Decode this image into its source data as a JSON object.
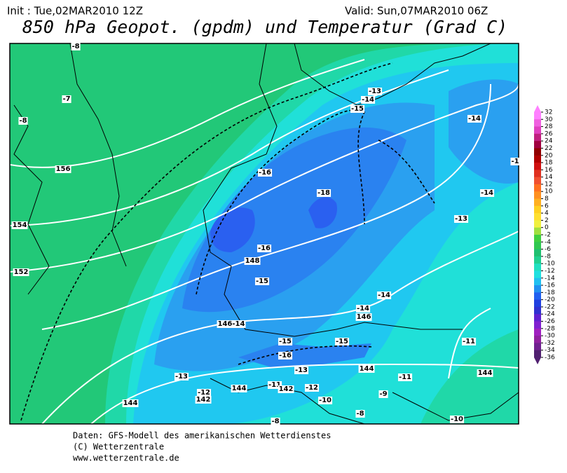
{
  "header": {
    "init": "Init : Tue,02MAR2010 12Z",
    "valid": "Valid: Sun,07MAR2010 06Z",
    "title": "850 hPa Geopot. (gpdm) und Temperatur (Grad C)"
  },
  "map": {
    "labels": [
      "-8",
      "-7",
      "-8",
      "156",
      "154",
      "152",
      "-16",
      "-18",
      "-16",
      "148",
      "-15",
      "-15",
      "-14",
      "-13",
      "-14",
      "-14",
      "-13",
      "-1",
      "-14",
      "-14",
      "146",
      "146-14",
      "-15",
      "-15",
      "-16",
      "144",
      "-11",
      "-11",
      "144",
      "-13",
      "-12",
      "142",
      "144",
      "-11",
      "-13",
      "-12",
      "142",
      "-9",
      "-10",
      "-8",
      "-8",
      "-10",
      "144"
    ]
  },
  "colorbar": {
    "levels": [
      32,
      30,
      28,
      26,
      24,
      22,
      20,
      18,
      16,
      14,
      12,
      10,
      8,
      6,
      4,
      2,
      0,
      -2,
      -4,
      -6,
      -8,
      -10,
      -12,
      -14,
      -16,
      -18,
      -20,
      -22,
      -24,
      -26,
      -28,
      -30,
      -32,
      -34,
      -36
    ],
    "colors": [
      "#ff80ff",
      "#f060e0",
      "#e040c0",
      "#c02080",
      "#a00040",
      "#900000",
      "#b00000",
      "#d01010",
      "#e03020",
      "#f05030",
      "#ff7020",
      "#ff9020",
      "#ffb020",
      "#ffd020",
      "#ffe030",
      "#f0f040",
      "#a0e040",
      "#40d040",
      "#30c850",
      "#20c070",
      "#20d090",
      "#20e0c0",
      "#20e0e0",
      "#20c0f0",
      "#2090f0",
      "#2060f0",
      "#2040e0",
      "#3030d0",
      "#6020d0",
      "#8020d0",
      "#a020c0",
      "#9020a0",
      "#702090",
      "#502070"
    ]
  },
  "footer": {
    "lines": [
      "Daten: GFS-Modell des amerikanischen Wetterdienstes",
      "(C) Wetterzentrale",
      "www.wetterzentrale.de"
    ]
  }
}
